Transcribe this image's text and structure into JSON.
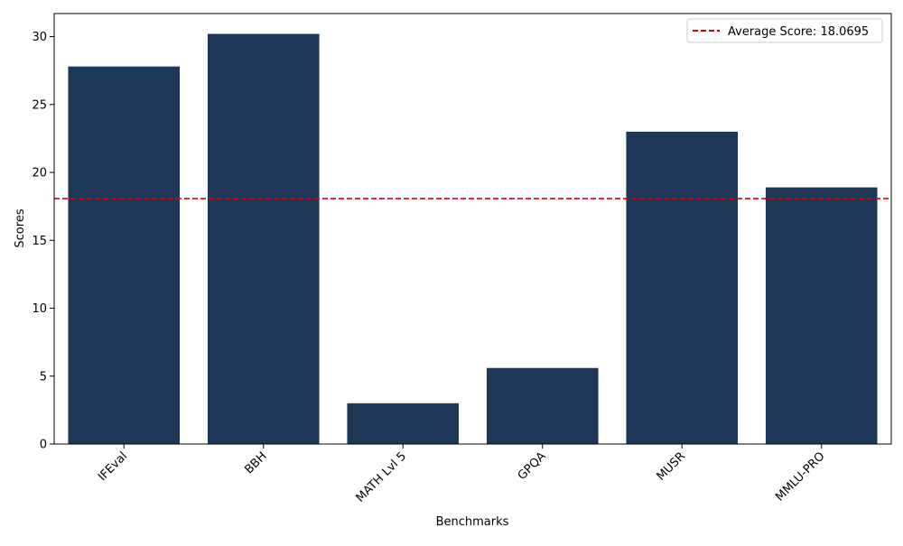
{
  "chart_data": {
    "type": "bar",
    "title": "",
    "xlabel": "Benchmarks",
    "ylabel": "Scores",
    "categories": [
      "IFEval",
      "BBH",
      "MATH Lvl 5",
      "GPQA",
      "MUSR",
      "MMLU-PRO"
    ],
    "values": [
      27.8,
      30.2,
      3.0,
      5.6,
      23.0,
      18.9
    ],
    "ylim": [
      0,
      31.7
    ],
    "yticks": [
      "0",
      "5",
      "10",
      "15",
      "20",
      "25",
      "30"
    ],
    "bar_color": "#1f3757",
    "average_line": {
      "value": 18.0695,
      "label": "Average Score: 18.0695",
      "color": "#e00000",
      "style": "dashed"
    },
    "legend_position": "top-right",
    "grid": false,
    "x_tick_rotation_deg": 45
  }
}
